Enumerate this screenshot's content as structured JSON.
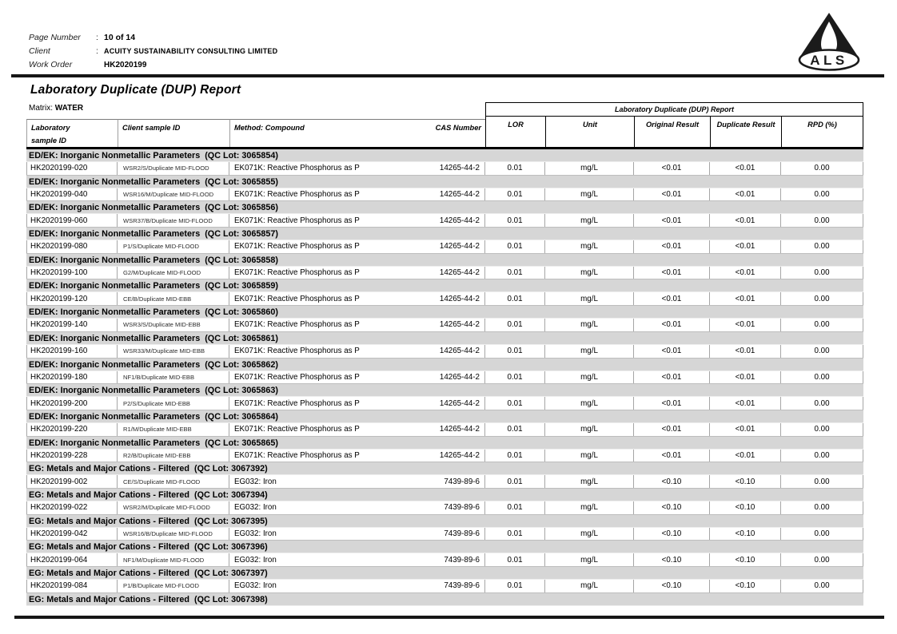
{
  "header": {
    "fields": [
      {
        "label": "Page Number",
        "sep": ":",
        "value": "10 of 14"
      },
      {
        "label": "Client",
        "sep": ":",
        "value": "ACUITY SUSTAINABILITY CONSULTING LIMITED"
      },
      {
        "label": "Work Order",
        "sep": "",
        "value": "HK2020199"
      }
    ],
    "logo": {
      "text": "ALS"
    }
  },
  "title": "Laboratory Duplicate (DUP) Report",
  "matrix": {
    "label": "Matrix:",
    "value": "WATER"
  },
  "colors": {
    "group_band": "#d6d6d6",
    "rule": "#161616",
    "cell_border": "#a6a6a6"
  },
  "table": {
    "span_header": "Laboratory Duplicate (DUP) Report",
    "columns": {
      "lab_line1": "Laboratory",
      "lab_line2": "sample ID",
      "client": "Client sample ID",
      "method": "Method: Compound",
      "cas": "CAS Number",
      "lor": "LOR",
      "unit": "Unit",
      "original": "Original Result",
      "duplicate": "Duplicate Result",
      "rpd": "RPD (%)"
    },
    "sections": [
      {
        "group": "ED/EK: Inorganic Nonmetallic Parameters  (QC Lot: 3065854)",
        "rows": [
          {
            "lab_id": "HK2020199-020",
            "client_id": "WSR2/S/Duplicate MID-FLOOD",
            "method": "EK071K: Reactive Phosphorus as P",
            "cas": "14265-44-2",
            "lor": "0.01",
            "unit": "mg/L",
            "original": "<0.01",
            "duplicate": "<0.01",
            "rpd": "0.00"
          }
        ]
      },
      {
        "group": "ED/EK: Inorganic Nonmetallic Parameters  (QC Lot: 3065855)",
        "rows": [
          {
            "lab_id": "HK2020199-040",
            "client_id": "WSR16/M/Duplicate MID-FLOOD",
            "method": "EK071K: Reactive Phosphorus as P",
            "cas": "14265-44-2",
            "lor": "0.01",
            "unit": "mg/L",
            "original": "<0.01",
            "duplicate": "<0.01",
            "rpd": "0.00"
          }
        ]
      },
      {
        "group": "ED/EK: Inorganic Nonmetallic Parameters  (QC Lot: 3065856)",
        "rows": [
          {
            "lab_id": "HK2020199-060",
            "client_id": "WSR37/B/Duplicate MID-FLOOD",
            "method": "EK071K: Reactive Phosphorus as P",
            "cas": "14265-44-2",
            "lor": "0.01",
            "unit": "mg/L",
            "original": "<0.01",
            "duplicate": "<0.01",
            "rpd": "0.00"
          }
        ]
      },
      {
        "group": "ED/EK: Inorganic Nonmetallic Parameters  (QC Lot: 3065857)",
        "rows": [
          {
            "lab_id": "HK2020199-080",
            "client_id": "P1/S/Duplicate MID-FLOOD",
            "method": "EK071K: Reactive Phosphorus as P",
            "cas": "14265-44-2",
            "lor": "0.01",
            "unit": "mg/L",
            "original": "<0.01",
            "duplicate": "<0.01",
            "rpd": "0.00"
          }
        ]
      },
      {
        "group": "ED/EK: Inorganic Nonmetallic Parameters  (QC Lot: 3065858)",
        "rows": [
          {
            "lab_id": "HK2020199-100",
            "client_id": "G2/M/Duplicate MID-FLOOD",
            "method": "EK071K: Reactive Phosphorus as P",
            "cas": "14265-44-2",
            "lor": "0.01",
            "unit": "mg/L",
            "original": "<0.01",
            "duplicate": "<0.01",
            "rpd": "0.00"
          }
        ]
      },
      {
        "group": "ED/EK: Inorganic Nonmetallic Parameters  (QC Lot: 3065859)",
        "rows": [
          {
            "lab_id": "HK2020199-120",
            "client_id": "CE/B/Duplicate MID-EBB",
            "method": "EK071K: Reactive Phosphorus as P",
            "cas": "14265-44-2",
            "lor": "0.01",
            "unit": "mg/L",
            "original": "<0.01",
            "duplicate": "<0.01",
            "rpd": "0.00"
          }
        ]
      },
      {
        "group": "ED/EK: Inorganic Nonmetallic Parameters  (QC Lot: 3065860)",
        "rows": [
          {
            "lab_id": "HK2020199-140",
            "client_id": "WSR3/S/Duplicate MID-EBB",
            "method": "EK071K: Reactive Phosphorus as P",
            "cas": "14265-44-2",
            "lor": "0.01",
            "unit": "mg/L",
            "original": "<0.01",
            "duplicate": "<0.01",
            "rpd": "0.00"
          }
        ]
      },
      {
        "group": "ED/EK: Inorganic Nonmetallic Parameters  (QC Lot: 3065861)",
        "rows": [
          {
            "lab_id": "HK2020199-160",
            "client_id": "WSR33/M/Duplicate MID-EBB",
            "method": "EK071K: Reactive Phosphorus as P",
            "cas": "14265-44-2",
            "lor": "0.01",
            "unit": "mg/L",
            "original": "<0.01",
            "duplicate": "<0.01",
            "rpd": "0.00"
          }
        ]
      },
      {
        "group": "ED/EK: Inorganic Nonmetallic Parameters  (QC Lot: 3065862)",
        "rows": [
          {
            "lab_id": "HK2020199-180",
            "client_id": "NF1/B/Duplicate MID-EBB",
            "method": "EK071K: Reactive Phosphorus as P",
            "cas": "14265-44-2",
            "lor": "0.01",
            "unit": "mg/L",
            "original": "<0.01",
            "duplicate": "<0.01",
            "rpd": "0.00"
          }
        ]
      },
      {
        "group": "ED/EK: Inorganic Nonmetallic Parameters  (QC Lot: 3065863)",
        "rows": [
          {
            "lab_id": "HK2020199-200",
            "client_id": "P2/S/Duplicate MID-EBB",
            "method": "EK071K: Reactive Phosphorus as P",
            "cas": "14265-44-2",
            "lor": "0.01",
            "unit": "mg/L",
            "original": "<0.01",
            "duplicate": "<0.01",
            "rpd": "0.00"
          }
        ]
      },
      {
        "group": "ED/EK: Inorganic Nonmetallic Parameters  (QC Lot: 3065864)",
        "rows": [
          {
            "lab_id": "HK2020199-220",
            "client_id": "R1/M/Duplicate MID-EBB",
            "method": "EK071K: Reactive Phosphorus as P",
            "cas": "14265-44-2",
            "lor": "0.01",
            "unit": "mg/L",
            "original": "<0.01",
            "duplicate": "<0.01",
            "rpd": "0.00"
          }
        ]
      },
      {
        "group": "ED/EK: Inorganic Nonmetallic Parameters  (QC Lot: 3065865)",
        "rows": [
          {
            "lab_id": "HK2020199-228",
            "client_id": "R2/B/Duplicate MID-EBB",
            "method": "EK071K: Reactive Phosphorus as P",
            "cas": "14265-44-2",
            "lor": "0.01",
            "unit": "mg/L",
            "original": "<0.01",
            "duplicate": "<0.01",
            "rpd": "0.00"
          }
        ]
      },
      {
        "group": "EG: Metals and Major Cations - Filtered  (QC Lot: 3067392)",
        "rows": [
          {
            "lab_id": "HK2020199-002",
            "client_id": "CE/S/Duplicate MID-FLOOD",
            "method": "EG032: Iron",
            "cas": "7439-89-6",
            "lor": "0.01",
            "unit": "mg/L",
            "original": "<0.10",
            "duplicate": "<0.10",
            "rpd": "0.00"
          }
        ]
      },
      {
        "group": "EG: Metals and Major Cations - Filtered  (QC Lot: 3067394)",
        "rows": [
          {
            "lab_id": "HK2020199-022",
            "client_id": "WSR2/M/Duplicate MID-FLOOD",
            "method": "EG032: Iron",
            "cas": "7439-89-6",
            "lor": "0.01",
            "unit": "mg/L",
            "original": "<0.10",
            "duplicate": "<0.10",
            "rpd": "0.00"
          }
        ]
      },
      {
        "group": "EG: Metals and Major Cations - Filtered  (QC Lot: 3067395)",
        "rows": [
          {
            "lab_id": "HK2020199-042",
            "client_id": "WSR16/B/Duplicate MID-FLOOD",
            "method": "EG032: Iron",
            "cas": "7439-89-6",
            "lor": "0.01",
            "unit": "mg/L",
            "original": "<0.10",
            "duplicate": "<0.10",
            "rpd": "0.00"
          }
        ]
      },
      {
        "group": "EG: Metals and Major Cations - Filtered  (QC Lot: 3067396)",
        "rows": [
          {
            "lab_id": "HK2020199-064",
            "client_id": "NF1/M/Duplicate MID-FLOOD",
            "method": "EG032: Iron",
            "cas": "7439-89-6",
            "lor": "0.01",
            "unit": "mg/L",
            "original": "<0.10",
            "duplicate": "<0.10",
            "rpd": "0.00"
          }
        ]
      },
      {
        "group": "EG: Metals and Major Cations - Filtered  (QC Lot: 3067397)",
        "rows": [
          {
            "lab_id": "HK2020199-084",
            "client_id": "P1/B/Duplicate MID-FLOOD",
            "method": "EG032: Iron",
            "cas": "7439-89-6",
            "lor": "0.01",
            "unit": "mg/L",
            "original": "<0.10",
            "duplicate": "<0.10",
            "rpd": "0.00"
          }
        ]
      },
      {
        "group": "EG: Metals and Major Cations - Filtered  (QC Lot: 3067398)",
        "rows": []
      }
    ]
  }
}
